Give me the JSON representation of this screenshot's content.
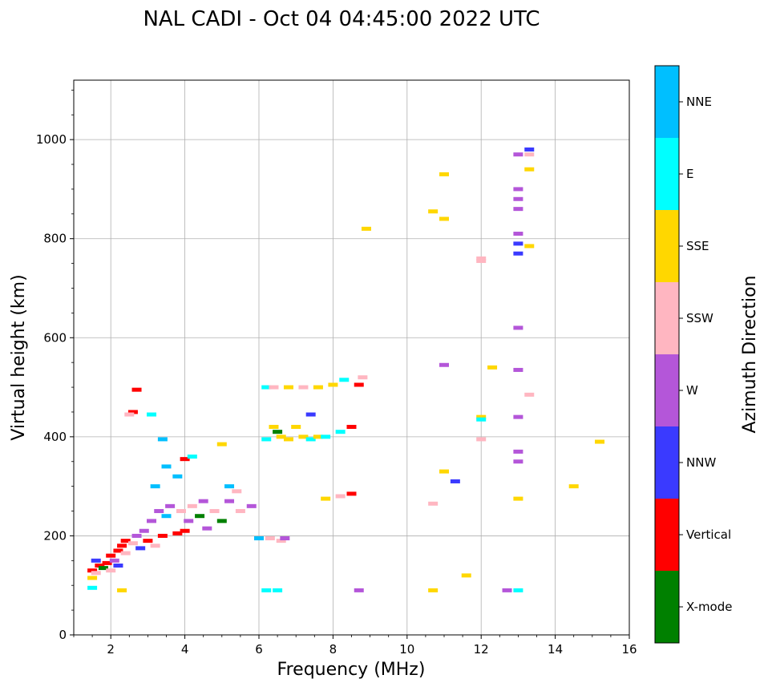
{
  "chart_data": {
    "type": "scatter",
    "title": "NAL CADI - Oct 04 04:45:00 2022 UTC",
    "xlabel": "Frequency (MHz)",
    "ylabel": "Virtual height (km)",
    "xlim": [
      1,
      16
    ],
    "ylim": [
      0,
      1120
    ],
    "xticks": [
      2,
      4,
      6,
      8,
      10,
      12,
      14,
      16
    ],
    "yticks": [
      0,
      200,
      400,
      600,
      800,
      1000
    ],
    "grid": true,
    "colorbar": {
      "label": "Azimuth Direction",
      "categories": [
        {
          "name": "X-mode",
          "color": "#008000"
        },
        {
          "name": "Vertical",
          "color": "#ff0000"
        },
        {
          "name": "NNW",
          "color": "#3a3aff"
        },
        {
          "name": "W",
          "color": "#b456d9"
        },
        {
          "name": "SSW",
          "color": "#ffb6c1"
        },
        {
          "name": "SSE",
          "color": "#ffd700"
        },
        {
          "name": "E",
          "color": "#00ffff"
        },
        {
          "name": "NNE",
          "color": "#00bfff"
        }
      ]
    },
    "points": [
      {
        "f": 1.5,
        "h": 130,
        "c": "Vertical"
      },
      {
        "f": 1.6,
        "h": 125,
        "c": "SSW"
      },
      {
        "f": 1.7,
        "h": 140,
        "c": "Vertical"
      },
      {
        "f": 1.5,
        "h": 115,
        "c": "SSE"
      },
      {
        "f": 1.6,
        "h": 150,
        "c": "NNW"
      },
      {
        "f": 1.8,
        "h": 135,
        "c": "X-mode"
      },
      {
        "f": 1.9,
        "h": 145,
        "c": "Vertical"
      },
      {
        "f": 2.0,
        "h": 130,
        "c": "SSW"
      },
      {
        "f": 2.0,
        "h": 160,
        "c": "Vertical"
      },
      {
        "f": 2.1,
        "h": 150,
        "c": "W"
      },
      {
        "f": 2.2,
        "h": 170,
        "c": "Vertical"
      },
      {
        "f": 2.2,
        "h": 140,
        "c": "NNW"
      },
      {
        "f": 2.3,
        "h": 180,
        "c": "Vertical"
      },
      {
        "f": 2.4,
        "h": 165,
        "c": "SSW"
      },
      {
        "f": 2.4,
        "h": 190,
        "c": "Vertical"
      },
      {
        "f": 1.5,
        "h": 95,
        "c": "E"
      },
      {
        "f": 2.3,
        "h": 90,
        "c": "SSE"
      },
      {
        "f": 2.6,
        "h": 185,
        "c": "SSW"
      },
      {
        "f": 2.7,
        "h": 200,
        "c": "W"
      },
      {
        "f": 2.8,
        "h": 175,
        "c": "NNW"
      },
      {
        "f": 2.9,
        "h": 210,
        "c": "W"
      },
      {
        "f": 3.0,
        "h": 190,
        "c": "Vertical"
      },
      {
        "f": 3.1,
        "h": 230,
        "c": "W"
      },
      {
        "f": 3.2,
        "h": 180,
        "c": "SSW"
      },
      {
        "f": 3.3,
        "h": 250,
        "c": "W"
      },
      {
        "f": 3.4,
        "h": 200,
        "c": "Vertical"
      },
      {
        "f": 3.5,
        "h": 240,
        "c": "NNE"
      },
      {
        "f": 3.6,
        "h": 260,
        "c": "W"
      },
      {
        "f": 3.8,
        "h": 205,
        "c": "Vertical"
      },
      {
        "f": 3.9,
        "h": 250,
        "c": "SSW"
      },
      {
        "f": 4.0,
        "h": 210,
        "c": "Vertical"
      },
      {
        "f": 4.1,
        "h": 230,
        "c": "W"
      },
      {
        "f": 4.2,
        "h": 260,
        "c": "SSW"
      },
      {
        "f": 4.4,
        "h": 240,
        "c": "X-mode"
      },
      {
        "f": 4.5,
        "h": 270,
        "c": "W"
      },
      {
        "f": 4.6,
        "h": 215,
        "c": "W"
      },
      {
        "f": 4.8,
        "h": 250,
        "c": "SSW"
      },
      {
        "f": 5.0,
        "h": 230,
        "c": "X-mode"
      },
      {
        "f": 5.2,
        "h": 270,
        "c": "W"
      },
      {
        "f": 5.4,
        "h": 290,
        "c": "SSW"
      },
      {
        "f": 5.5,
        "h": 250,
        "c": "SSW"
      },
      {
        "f": 5.2,
        "h": 300,
        "c": "NNE"
      },
      {
        "f": 3.2,
        "h": 300,
        "c": "NNE"
      },
      {
        "f": 3.5,
        "h": 340,
        "c": "NNE"
      },
      {
        "f": 3.8,
        "h": 320,
        "c": "NNE"
      },
      {
        "f": 4.0,
        "h": 355,
        "c": "Vertical"
      },
      {
        "f": 4.2,
        "h": 360,
        "c": "E"
      },
      {
        "f": 5.0,
        "h": 385,
        "c": "SSE"
      },
      {
        "f": 2.7,
        "h": 495,
        "c": "Vertical"
      },
      {
        "f": 2.6,
        "h": 450,
        "c": "Vertical"
      },
      {
        "f": 2.5,
        "h": 445,
        "c": "SSW"
      },
      {
        "f": 3.1,
        "h": 445,
        "c": "E"
      },
      {
        "f": 3.4,
        "h": 395,
        "c": "NNE"
      },
      {
        "f": 5.8,
        "h": 260,
        "c": "W"
      },
      {
        "f": 6.2,
        "h": 500,
        "c": "E"
      },
      {
        "f": 6.4,
        "h": 500,
        "c": "SSW"
      },
      {
        "f": 6.8,
        "h": 500,
        "c": "SSE"
      },
      {
        "f": 7.2,
        "h": 500,
        "c": "SSW"
      },
      {
        "f": 7.6,
        "h": 500,
        "c": "SSE"
      },
      {
        "f": 8.0,
        "h": 505,
        "c": "SSE"
      },
      {
        "f": 8.3,
        "h": 515,
        "c": "E"
      },
      {
        "f": 8.7,
        "h": 505,
        "c": "Vertical"
      },
      {
        "f": 8.8,
        "h": 520,
        "c": "SSW"
      },
      {
        "f": 6.4,
        "h": 420,
        "c": "SSE"
      },
      {
        "f": 6.6,
        "h": 400,
        "c": "SSE"
      },
      {
        "f": 6.8,
        "h": 395,
        "c": "SSE"
      },
      {
        "f": 7.0,
        "h": 420,
        "c": "SSE"
      },
      {
        "f": 7.2,
        "h": 400,
        "c": "SSE"
      },
      {
        "f": 7.4,
        "h": 395,
        "c": "E"
      },
      {
        "f": 7.6,
        "h": 400,
        "c": "SSE"
      },
      {
        "f": 7.8,
        "h": 400,
        "c": "E"
      },
      {
        "f": 8.2,
        "h": 410,
        "c": "E"
      },
      {
        "f": 8.5,
        "h": 420,
        "c": "Vertical"
      },
      {
        "f": 6.2,
        "h": 395,
        "c": "E"
      },
      {
        "f": 6.5,
        "h": 410,
        "c": "X-mode"
      },
      {
        "f": 7.4,
        "h": 445,
        "c": "NNW"
      },
      {
        "f": 6.3,
        "h": 195,
        "c": "SSW"
      },
      {
        "f": 6.6,
        "h": 190,
        "c": "SSW"
      },
      {
        "f": 6.0,
        "h": 195,
        "c": "NNE"
      },
      {
        "f": 6.7,
        "h": 195,
        "c": "W"
      },
      {
        "f": 7.8,
        "h": 275,
        "c": "SSE"
      },
      {
        "f": 8.2,
        "h": 280,
        "c": "SSW"
      },
      {
        "f": 8.5,
        "h": 285,
        "c": "Vertical"
      },
      {
        "f": 6.2,
        "h": 90,
        "c": "E"
      },
      {
        "f": 6.5,
        "h": 90,
        "c": "E"
      },
      {
        "f": 8.7,
        "h": 90,
        "c": "W"
      },
      {
        "f": 8.9,
        "h": 820,
        "c": "SSE"
      },
      {
        "f": 10.7,
        "h": 90,
        "c": "SSE"
      },
      {
        "f": 10.7,
        "h": 265,
        "c": "SSW"
      },
      {
        "f": 11.0,
        "h": 330,
        "c": "SSE"
      },
      {
        "f": 11.3,
        "h": 310,
        "c": "NNW"
      },
      {
        "f": 11.6,
        "h": 120,
        "c": "SSE"
      },
      {
        "f": 10.7,
        "h": 855,
        "c": "SSE"
      },
      {
        "f": 11.0,
        "h": 840,
        "c": "SSE"
      },
      {
        "f": 11.0,
        "h": 930,
        "c": "SSE"
      },
      {
        "f": 11.0,
        "h": 545,
        "c": "W"
      },
      {
        "f": 12.0,
        "h": 760,
        "c": "SSW"
      },
      {
        "f": 12.0,
        "h": 755,
        "c": "SSW"
      },
      {
        "f": 12.0,
        "h": 440,
        "c": "SSE"
      },
      {
        "f": 12.0,
        "h": 435,
        "c": "E"
      },
      {
        "f": 12.0,
        "h": 395,
        "c": "SSW"
      },
      {
        "f": 12.3,
        "h": 540,
        "c": "SSE"
      },
      {
        "f": 12.7,
        "h": 90,
        "c": "W"
      },
      {
        "f": 13.0,
        "h": 90,
        "c": "E"
      },
      {
        "f": 13.0,
        "h": 275,
        "c": "SSE"
      },
      {
        "f": 13.0,
        "h": 350,
        "c": "W"
      },
      {
        "f": 13.0,
        "h": 370,
        "c": "W"
      },
      {
        "f": 13.0,
        "h": 440,
        "c": "W"
      },
      {
        "f": 13.0,
        "h": 535,
        "c": "W"
      },
      {
        "f": 13.0,
        "h": 620,
        "c": "W"
      },
      {
        "f": 13.0,
        "h": 770,
        "c": "NNW"
      },
      {
        "f": 13.0,
        "h": 790,
        "c": "NNW"
      },
      {
        "f": 13.0,
        "h": 810,
        "c": "W"
      },
      {
        "f": 13.0,
        "h": 860,
        "c": "W"
      },
      {
        "f": 13.0,
        "h": 880,
        "c": "W"
      },
      {
        "f": 13.0,
        "h": 900,
        "c": "W"
      },
      {
        "f": 13.0,
        "h": 970,
        "c": "W"
      },
      {
        "f": 13.3,
        "h": 980,
        "c": "NNW"
      },
      {
        "f": 13.3,
        "h": 970,
        "c": "SSW"
      },
      {
        "f": 13.3,
        "h": 940,
        "c": "SSE"
      },
      {
        "f": 13.3,
        "h": 785,
        "c": "SSE"
      },
      {
        "f": 13.3,
        "h": 485,
        "c": "SSW"
      },
      {
        "f": 14.5,
        "h": 300,
        "c": "SSE"
      },
      {
        "f": 15.2,
        "h": 390,
        "c": "SSE"
      }
    ]
  }
}
